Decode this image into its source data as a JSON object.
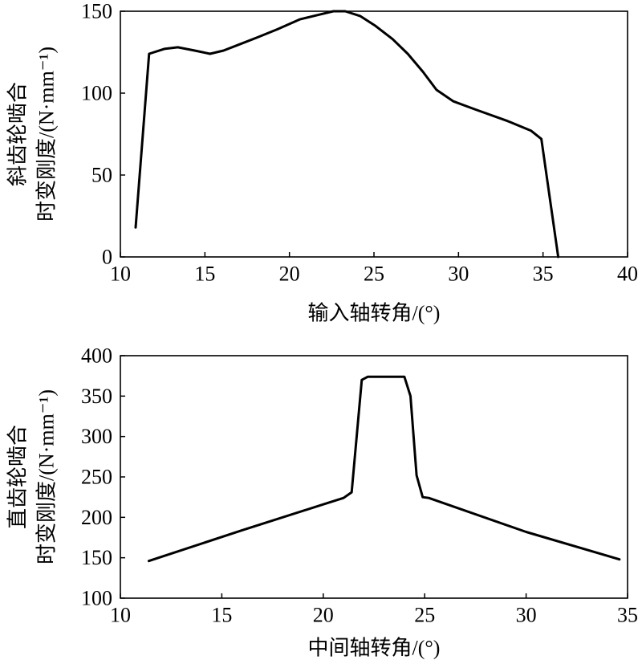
{
  "chart_data": [
    {
      "type": "line",
      "xlabel": "输入轴转角/(°)",
      "ylabel": [
        "斜齿轮啮合",
        "时变刚度/(N·mm⁻¹)"
      ],
      "xlim": [
        10,
        40
      ],
      "ylim": [
        0,
        150
      ],
      "xticks": [
        10,
        15,
        20,
        25,
        30,
        35,
        40
      ],
      "yticks": [
        0,
        50,
        100,
        150
      ],
      "grid": false,
      "legend": "none",
      "line_color": "#000000",
      "series": [
        {
          "x": [
            10.9,
            11.7,
            12.6,
            13.4,
            14.4,
            15.3,
            16.1,
            17.1,
            18.1,
            19.3,
            20.6,
            21.8,
            22.6,
            23.3,
            24.2,
            25.1,
            26.1,
            27.0,
            27.9,
            28.7,
            29.7,
            31.0,
            32.9,
            34.3,
            34.9,
            35.9
          ],
          "y": [
            18,
            124,
            127,
            128,
            126,
            124,
            126,
            130,
            134,
            139,
            145,
            148,
            150,
            150,
            147,
            141,
            133,
            124,
            113,
            102,
            95,
            90,
            83,
            77,
            72,
            0
          ]
        }
      ]
    },
    {
      "type": "line",
      "xlabel": "中间轴转角/(°)",
      "ylabel": [
        "直齿轮啮合",
        "时变刚度/(N·mm⁻¹)"
      ],
      "xlim": [
        10,
        35
      ],
      "ylim": [
        100,
        400
      ],
      "xticks": [
        10,
        15,
        20,
        25,
        30,
        35
      ],
      "yticks": [
        100,
        150,
        200,
        250,
        300,
        350,
        400
      ],
      "grid": false,
      "legend": "none",
      "line_color": "#000000",
      "series": [
        {
          "x": [
            11.4,
            12.0,
            16.0,
            20.0,
            21.0,
            21.4,
            21.9,
            22.2,
            24.0,
            24.3,
            24.6,
            24.9,
            25.2,
            30.0,
            34.6
          ],
          "y": [
            146,
            151,
            184,
            216,
            224,
            231,
            370,
            374,
            374,
            350,
            252,
            225,
            224,
            182,
            148
          ]
        }
      ]
    }
  ]
}
